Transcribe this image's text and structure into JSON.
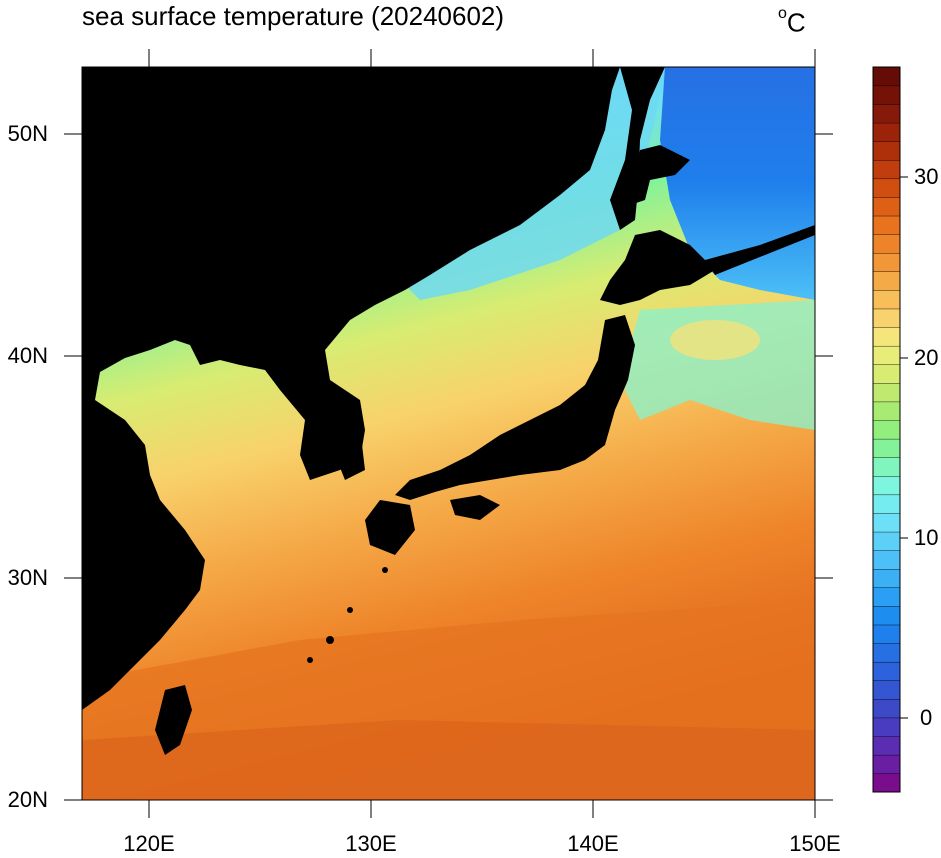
{
  "map": {
    "title": "sea surface temperature (20240602)",
    "units": "°C",
    "lat_labels": [
      "50N",
      "40N",
      "30N",
      "20N"
    ],
    "lon_labels": [
      "120E",
      "130E",
      "140E",
      "150E"
    ],
    "extent": {
      "lon_min": 117,
      "lon_max": 150,
      "lat_min": 20,
      "lat_max": 53
    },
    "land_color": "#000000",
    "colorbar": {
      "min": -5,
      "max": 36,
      "step": 1,
      "tick_labels": [
        "30",
        "20",
        "10",
        "0"
      ],
      "colors": [
        "#7a0d8c",
        "#6a1ea3",
        "#5a2db3",
        "#4a3cc0",
        "#3d4ac8",
        "#3556d2",
        "#2c62dc",
        "#2670e4",
        "#1f7fec",
        "#1d8ef0",
        "#2a9ff3",
        "#3cb0f5",
        "#4cc0f7",
        "#5dd0f8",
        "#6de0f8",
        "#75ecf0",
        "#7ef5de",
        "#80f5bd",
        "#84f299",
        "#92ee7d",
        "#a8eb72",
        "#c0ea6f",
        "#d8ec72",
        "#e8ec78",
        "#f5e67c",
        "#f8d26c",
        "#f7be5a",
        "#f5aa48",
        "#f29738",
        "#ee842a",
        "#e8721e",
        "#dd6016",
        "#cf4e10",
        "#c03e0d",
        "#ad300b",
        "#9a230a",
        "#861a0a",
        "#741208",
        "#650c06"
      ]
    }
  }
}
